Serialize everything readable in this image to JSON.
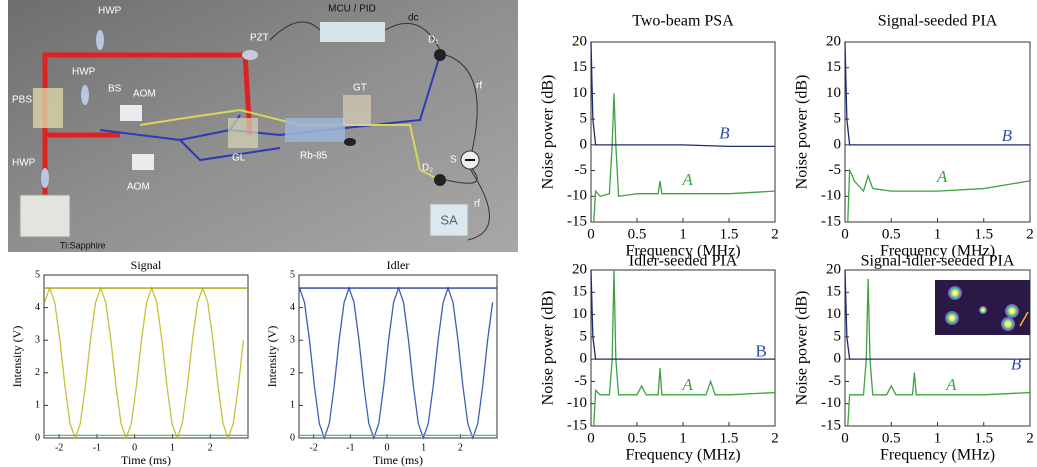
{
  "setup": {
    "labels": [
      "HWP",
      "HWP",
      "BS",
      "PBS",
      "HWP",
      "AOM",
      "AOM",
      "PZT",
      "MCU / PID",
      "dc",
      "D₁",
      "GT",
      "GL",
      "Rb-85",
      "S",
      "rf",
      "rf",
      "D₂",
      "SA",
      "Ti:Sapphire"
    ]
  },
  "chart_data": [
    {
      "type": "line",
      "title": "Signal",
      "xlabel": "Time (ms)",
      "ylabel": "Intensity (V)",
      "xlim": [
        -2.4,
        3
      ],
      "ylim": [
        0,
        5
      ],
      "xticks": [
        -2,
        -1,
        0,
        1,
        2
      ],
      "yticks": [
        0,
        1,
        2,
        3,
        4,
        5
      ],
      "series": [
        {
          "color": "#c9c23a",
          "x": [
            -2.385,
            -2.25,
            -2.115,
            -1.98,
            -1.845,
            -1.71,
            -1.575,
            -1.44,
            -1.305,
            -1.17,
            -1.035,
            -0.9,
            -0.765,
            -0.63,
            -0.495,
            -0.36,
            -0.225,
            -0.09,
            0.045,
            0.18,
            0.315,
            0.45,
            0.585,
            0.72,
            0.855,
            0.99,
            1.125,
            1.26,
            1.395,
            1.53,
            1.665,
            1.8,
            1.935,
            2.07,
            2.205,
            2.34,
            2.475,
            2.61,
            2.745,
            2.88
          ],
          "values": [
            4.16,
            4.6,
            4.16,
            3.01,
            1.59,
            0.44,
            0,
            0.44,
            1.59,
            3.01,
            4.16,
            4.6,
            4.16,
            3.01,
            1.59,
            0.44,
            0,
            0.44,
            1.59,
            3.01,
            4.16,
            4.6,
            4.16,
            3.01,
            1.59,
            0.44,
            0,
            0.44,
            1.59,
            3.01,
            4.16,
            4.6,
            4.16,
            3.01,
            1.59,
            0.44,
            0,
            0.44,
            1.59,
            3.01
          ]
        },
        {
          "color": "#a9a000",
          "x": [
            -2.4,
            3
          ],
          "values": [
            4.6,
            4.6
          ]
        },
        {
          "color": "#5cc05c",
          "x": [
            -2.4,
            3
          ],
          "values": [
            0.08,
            0.08
          ]
        }
      ]
    },
    {
      "type": "line",
      "title": "Idler",
      "xlabel": "Time (ms)",
      "ylabel": "Intensity (V)",
      "xlim": [
        -2.4,
        3
      ],
      "ylim": [
        0,
        5
      ],
      "xticks": [
        -2,
        -1,
        0,
        1,
        2
      ],
      "yticks": [
        0,
        1,
        2,
        3,
        4,
        5
      ],
      "series": [
        {
          "color": "#3d5fb3",
          "x": [
            -2.385,
            -2.25,
            -2.115,
            -1.98,
            -1.845,
            -1.71,
            -1.575,
            -1.44,
            -1.305,
            -1.17,
            -1.035,
            -0.9,
            -0.765,
            -0.63,
            -0.495,
            -0.36,
            -0.225,
            -0.09,
            0.045,
            0.18,
            0.315,
            0.45,
            0.585,
            0.72,
            0.855,
            0.99,
            1.125,
            1.26,
            1.395,
            1.53,
            1.665,
            1.8,
            1.935,
            2.07,
            2.205,
            2.34,
            2.475,
            2.61,
            2.745,
            2.88
          ],
          "values": [
            4.6,
            4.16,
            3.01,
            1.59,
            0.44,
            0,
            0.44,
            1.59,
            3.01,
            4.16,
            4.6,
            4.16,
            3.01,
            1.59,
            0.44,
            0,
            0.44,
            1.59,
            3.01,
            4.16,
            4.6,
            4.16,
            3.01,
            1.59,
            0.44,
            0,
            0.44,
            1.59,
            3.01,
            4.16,
            4.6,
            4.16,
            3.01,
            1.59,
            0.44,
            0,
            0.44,
            1.59,
            3.01,
            4.16
          ]
        },
        {
          "color": "#2a3f9a",
          "x": [
            -2.4,
            3
          ],
          "values": [
            4.6,
            4.6
          ]
        },
        {
          "color": "#5cc05c",
          "x": [
            -2.4,
            3
          ],
          "values": [
            0.08,
            0.08
          ]
        }
      ]
    },
    {
      "type": "line",
      "title": "Two-beam PSA",
      "xlabel": "Frequency (MHz)",
      "ylabel": "Noise power (dB)",
      "xlim": [
        0,
        2
      ],
      "ylim": [
        -15,
        20
      ],
      "xticks": [
        0,
        0.5,
        1,
        1.5,
        2
      ],
      "yticks": [
        -15,
        -10,
        -5,
        0,
        5,
        10,
        15,
        20
      ],
      "series": [
        {
          "name": "A",
          "color": "#3fa23f",
          "x": [
            0.03,
            0.05,
            0.1,
            0.2,
            0.23,
            0.25,
            0.27,
            0.3,
            0.5,
            0.73,
            0.75,
            0.77,
            1,
            1.5,
            2
          ],
          "values": [
            -15,
            -9,
            -10,
            -9.5,
            0,
            10,
            0,
            -10,
            -9.5,
            -9.5,
            -7,
            -9.5,
            -9.5,
            -9.5,
            -9
          ]
        },
        {
          "name": "B",
          "color": "#1f2a6e",
          "x": [
            0,
            0.02,
            0.05,
            0.5,
            1,
            1.5,
            2
          ],
          "values": [
            20,
            5,
            0,
            0,
            0,
            -0.3,
            -0.3
          ]
        }
      ]
    },
    {
      "type": "line",
      "title": "Signal-seeded PIA",
      "xlabel": "Frequency (MHz)",
      "ylabel": "Noise power (dB)",
      "xlim": [
        0,
        2
      ],
      "ylim": [
        -15,
        20
      ],
      "xticks": [
        0,
        0.5,
        1,
        1.5,
        2
      ],
      "yticks": [
        -15,
        -10,
        -5,
        0,
        5,
        10,
        15,
        20
      ],
      "series": [
        {
          "name": "A",
          "color": "#3fa23f",
          "x": [
            0.03,
            0.05,
            0.08,
            0.1,
            0.15,
            0.2,
            0.25,
            0.3,
            0.5,
            1,
            1.5,
            2
          ],
          "values": [
            -15,
            -5,
            -6,
            -7,
            -8,
            -9,
            -6,
            -8.5,
            -9,
            -9,
            -8.5,
            -7
          ]
        },
        {
          "name": "B",
          "color": "#1f2a6e",
          "x": [
            0,
            0.02,
            0.05,
            0.5,
            1,
            1.5,
            2
          ],
          "values": [
            20,
            5,
            0,
            0,
            0,
            0,
            0
          ]
        }
      ]
    },
    {
      "type": "line",
      "title": "Idler-seeded PIA",
      "xlabel": "Frequency (MHz)",
      "ylabel": "Noise power (dB)",
      "xlim": [
        0,
        2
      ],
      "ylim": [
        -15,
        20
      ],
      "xticks": [
        0,
        0.5,
        1,
        1.5,
        2
      ],
      "yticks": [
        -15,
        -10,
        -5,
        0,
        5,
        10,
        15,
        20
      ],
      "series": [
        {
          "name": "A",
          "color": "#3fa23f",
          "x": [
            0.03,
            0.05,
            0.1,
            0.2,
            0.23,
            0.25,
            0.27,
            0.3,
            0.5,
            0.55,
            0.6,
            0.73,
            0.75,
            0.77,
            1,
            1.25,
            1.3,
            1.35,
            1.5,
            2
          ],
          "values": [
            -15,
            -7,
            -8,
            -8,
            0,
            20,
            0,
            -8,
            -8,
            -6,
            -8,
            -8,
            -2,
            -8,
            -8,
            -8,
            -5,
            -8,
            -8,
            -7.5
          ]
        },
        {
          "name": "B",
          "color": "#1f2a6e",
          "x": [
            0,
            0.02,
            0.05,
            0.5,
            1,
            1.5,
            2
          ],
          "values": [
            20,
            5,
            0,
            0,
            0,
            0,
            0
          ]
        }
      ]
    },
    {
      "type": "line",
      "title": "Signal-idler-seeded PIA",
      "xlabel": "Frequency (MHz)",
      "ylabel": "Noise power (dB)",
      "xlim": [
        0,
        2
      ],
      "ylim": [
        -15,
        20
      ],
      "xticks": [
        0,
        0.5,
        1,
        1.5,
        2
      ],
      "yticks": [
        -15,
        -10,
        -5,
        0,
        5,
        10,
        15,
        20
      ],
      "series": [
        {
          "name": "A",
          "color": "#3fa23f",
          "x": [
            0.03,
            0.05,
            0.1,
            0.2,
            0.23,
            0.25,
            0.27,
            0.3,
            0.45,
            0.5,
            0.55,
            0.73,
            0.75,
            0.77,
            1,
            1.5,
            2
          ],
          "values": [
            -15,
            -8,
            -8,
            -8,
            0,
            18,
            0,
            -8,
            -8,
            -6,
            -8,
            -8,
            -3,
            -8,
            -8,
            -8,
            -7.5
          ]
        },
        {
          "name": "B",
          "color": "#1f2a6e",
          "x": [
            0,
            0.02,
            0.05,
            0.5,
            1,
            1.5,
            2
          ],
          "values": [
            20,
            5,
            0,
            0,
            0,
            0,
            0
          ]
        }
      ]
    }
  ]
}
